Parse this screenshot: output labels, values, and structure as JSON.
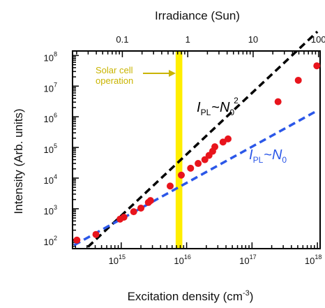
{
  "chart_data": {
    "type": "scatter",
    "xlabel": "Excitation density (cm",
    "xlabel_sup": "-3",
    "xlabel_end": ")",
    "ylabel": "Intensity (Arb. units)",
    "top_axis_label": "Irradiance (Sun)",
    "x_scale": "log",
    "y_scale": "log",
    "xlim": [
      180000000000000.0,
      1.1e+18
    ],
    "ylim": [
      50,
      140000000.0
    ],
    "x_ticks": [
      {
        "value": 1000000000000000.0,
        "base": "10",
        "exp": "15"
      },
      {
        "value": 1e+16,
        "base": "10",
        "exp": "16"
      },
      {
        "value": 1e+17,
        "base": "10",
        "exp": "17"
      },
      {
        "value": 1e+18,
        "base": "10",
        "exp": "18"
      }
    ],
    "y_ticks": [
      {
        "value": 100.0,
        "base": "10",
        "exp": "2"
      },
      {
        "value": 1000.0,
        "base": "10",
        "exp": "3"
      },
      {
        "value": 10000.0,
        "base": "10",
        "exp": "4"
      },
      {
        "value": 100000.0,
        "base": "10",
        "exp": "5"
      },
      {
        "value": 1000000.0,
        "base": "10",
        "exp": "6"
      },
      {
        "value": 10000000.0,
        "base": "10",
        "exp": "7"
      },
      {
        "value": 100000000.0,
        "base": "10",
        "exp": "8"
      }
    ],
    "top_ticks": [
      {
        "label": "0.1",
        "value": 0.1
      },
      {
        "label": "1",
        "value": 1
      },
      {
        "label": "10",
        "value": 10
      },
      {
        "label": "100",
        "value": 100
      }
    ],
    "top_sun_to_density": 1.04e+16,
    "points": [
      {
        "x": 210000000000000.0,
        "y": 95
      },
      {
        "x": 410000000000000.0,
        "y": 145
      },
      {
        "x": 960000000000000.0,
        "y": 460
      },
      {
        "x": 1100000000000000.0,
        "y": 530
      },
      {
        "x": 1550000000000000.0,
        "y": 800
      },
      {
        "x": 2000000000000000.0,
        "y": 1050
      },
      {
        "x": 2600000000000000.0,
        "y": 1600
      },
      {
        "x": 2800000000000000.0,
        "y": 1850
      },
      {
        "x": 5600000000000000.0,
        "y": 5500
      },
      {
        "x": 8300000000000000.0,
        "y": 12500
      },
      {
        "x": 1.15e+16,
        "y": 21000
      },
      {
        "x": 1.5e+16,
        "y": 30000
      },
      {
        "x": 1.9e+16,
        "y": 40000
      },
      {
        "x": 2.2e+16,
        "y": 55000
      },
      {
        "x": 2.5e+16,
        "y": 75000
      },
      {
        "x": 2.7e+16,
        "y": 105000
      },
      {
        "x": 3.6e+16,
        "y": 150000
      },
      {
        "x": 4.3e+16,
        "y": 190000
      },
      {
        "x": 2.5e+17,
        "y": 3100000
      },
      {
        "x": 5.1e+17,
        "y": 15500000
      },
      {
        "x": 9.8e+17,
        "y": 46000000
      }
    ],
    "fits": [
      {
        "name": "quadratic",
        "color": "#000000",
        "x": [
          310000000000000.0,
          1e+18
        ],
        "y": [
          57,
          600000000.0
        ]
      },
      {
        "name": "linear",
        "color": "#2b57e8",
        "x": [
          190000000000000.0,
          1e+18
        ],
        "y": [
          65,
          1600000.0
        ]
      }
    ],
    "band": {
      "x_from": 6800000000000000.0,
      "x_to": 8600000000000000.0,
      "color": "#ffee00"
    },
    "annotations": {
      "solar_line1": "Solar cell",
      "solar_line2": "operation",
      "solar_color": "#c9b400",
      "quad_I": "I",
      "quad_sub": "PL",
      "quad_sim": "~",
      "quad_N": "N",
      "quad_Nsub": "0",
      "quad_sup": "2",
      "lin_I": "I",
      "lin_sub": "PL",
      "lin_sim": "~",
      "lin_N": "N",
      "lin_Nsub": "0"
    },
    "colors": {
      "points": "#e8141c",
      "axis": "#000000",
      "linear": "#2b57e8",
      "quadratic": "#000000"
    }
  }
}
